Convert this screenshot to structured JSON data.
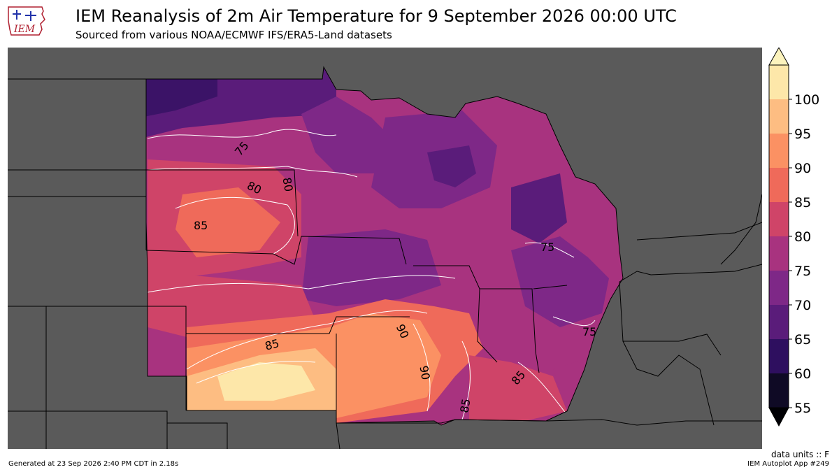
{
  "header": {
    "logo_text": "IEM",
    "title": "IEM Reanalysis of 2m Air Temperature for 9 September 2026 00:00 UTC",
    "subtitle": "Sourced from various NOAA/ECMWF IFS/ERA5-Land datasets"
  },
  "colorbar": {
    "levels": [
      "55",
      "60",
      "65",
      "70",
      "75",
      "80",
      "85",
      "90",
      "95",
      "100"
    ],
    "colors": [
      "#0f0a25",
      "#2e0f5f",
      "#5a1c7a",
      "#7e2887",
      "#a8337f",
      "#cf4468",
      "#ef6a5a",
      "#fb9163",
      "#fdbd82",
      "#fde7a9"
    ],
    "extend_high_color": "#fcf3bd",
    "extend_low_color": "#000004"
  },
  "contour_labels": [
    {
      "text": "75"
    },
    {
      "text": "80"
    },
    {
      "text": "80"
    },
    {
      "text": "85"
    },
    {
      "text": "85"
    },
    {
      "text": "90"
    },
    {
      "text": "90"
    },
    {
      "text": "85"
    },
    {
      "text": "85"
    },
    {
      "text": "75"
    },
    {
      "text": "75"
    }
  ],
  "footer": {
    "units": "data units :: F",
    "generated": "Generated at 23 Sep 2026 2:40 PM CDT in 2.18s",
    "app": "IEM Autoplot App #249"
  }
}
